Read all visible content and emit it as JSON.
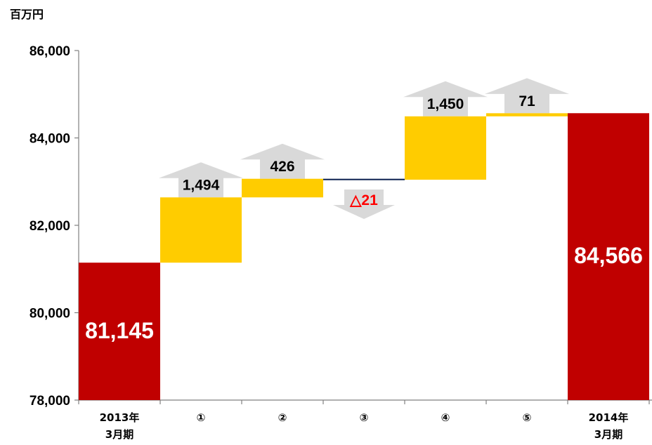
{
  "chart_data": {
    "type": "bar",
    "subtype": "waterfall",
    "unit": "百万円",
    "ylim": [
      78000,
      86000
    ],
    "yticks": [
      "78,000",
      "80,000",
      "82,000",
      "84,000",
      "86,000"
    ],
    "ytick_values": [
      78000,
      80000,
      82000,
      84000,
      86000
    ],
    "grid": false,
    "steps": [
      {
        "kind": "total",
        "label_lines": [
          "2013年",
          "3月期"
        ],
        "value": 81145,
        "display": "81,145"
      },
      {
        "kind": "delta",
        "label_lines": [
          "①"
        ],
        "value": 1494,
        "display": "1,494"
      },
      {
        "kind": "delta",
        "label_lines": [
          "②"
        ],
        "value": 426,
        "display": "426"
      },
      {
        "kind": "delta",
        "label_lines": [
          "③"
        ],
        "value": -21,
        "display": "△21"
      },
      {
        "kind": "delta",
        "label_lines": [
          "④"
        ],
        "value": 1450,
        "display": "1,450"
      },
      {
        "kind": "delta",
        "label_lines": [
          "⑤"
        ],
        "value": 71,
        "display": "71"
      },
      {
        "kind": "total",
        "label_lines": [
          "2014年",
          "3月期"
        ],
        "value": 84566,
        "display": "84,566"
      }
    ],
    "colors": {
      "total": "#c00000",
      "increase": "#ffcc00",
      "decrease": "#0a1f4f",
      "arrow": "#d9d9d9",
      "negative_text": "#ff0000",
      "axis": "#808080"
    }
  }
}
